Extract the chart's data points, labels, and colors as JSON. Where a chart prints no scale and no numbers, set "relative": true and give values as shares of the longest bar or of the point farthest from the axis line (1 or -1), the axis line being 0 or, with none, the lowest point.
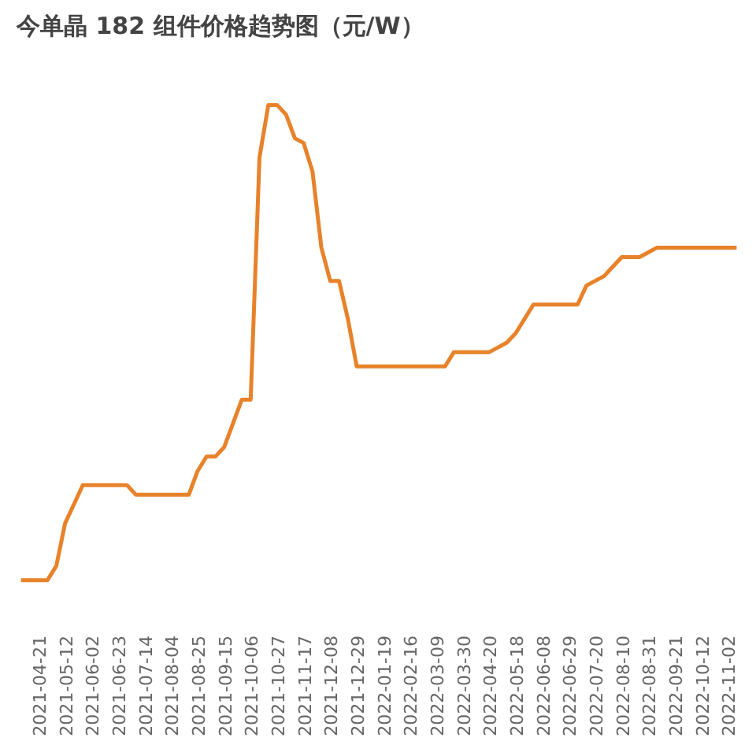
{
  "chart_data": {
    "type": "line",
    "title": "今单晶 182 组件价格趋势图（元/W）",
    "relative": true,
    "grid": false,
    "tick_labels": "x",
    "line_style": "solid",
    "marker": "none",
    "categories": [
      null,
      null,
      "2021-04-21",
      null,
      null,
      "2021-05-12",
      null,
      null,
      "2021-06-02",
      null,
      null,
      "2021-06-23",
      null,
      null,
      "2021-07-14",
      null,
      null,
      "2021-08-04",
      null,
      null,
      "2021-08-25",
      null,
      null,
      "2021-09-15",
      null,
      null,
      "2021-10-06",
      null,
      null,
      "2021-10-27",
      null,
      null,
      "2021-11-17",
      null,
      null,
      "2021-12-08",
      null,
      null,
      "2021-12-29",
      null,
      null,
      "2022-01-19",
      null,
      null,
      "2022-02-16",
      null,
      null,
      "2022-03-09",
      null,
      null,
      "2022-03-30",
      null,
      null,
      "2022-04-20",
      null,
      null,
      "2022-05-18",
      null,
      null,
      "2022-06-08",
      null,
      null,
      "2022-06-29",
      null,
      null,
      "2022-07-20",
      null,
      null,
      "2022-08-10",
      null,
      null,
      "2022-08-31",
      null,
      null,
      "2022-09-21",
      null,
      null,
      "2022-10-12",
      null,
      null,
      "2022-11-02",
      null
    ],
    "series": [
      {
        "color": "#e8822a",
        "values": [
          0,
          0,
          0,
          0,
          0.03,
          0.12,
          0.16,
          0.2,
          0.2,
          0.2,
          0.2,
          0.2,
          0.2,
          0.18,
          0.18,
          0.18,
          0.18,
          0.18,
          0.18,
          0.18,
          0.23,
          0.26,
          0.26,
          0.28,
          0.33,
          0.38,
          0.38,
          0.89,
          1,
          1,
          0.98,
          0.93,
          0.92,
          0.86,
          0.7,
          0.63,
          0.63,
          0.55,
          0.45,
          0.45,
          0.45,
          0.45,
          0.45,
          0.45,
          0.45,
          0.45,
          0.45,
          0.45,
          0.45,
          0.48,
          0.48,
          0.48,
          0.48,
          0.48,
          0.49,
          0.5,
          0.52,
          0.55,
          0.58,
          0.58,
          0.58,
          0.58,
          0.58,
          0.58,
          0.62,
          0.63,
          0.64,
          0.66,
          0.68,
          0.68,
          0.68,
          0.69,
          0.7,
          0.7,
          0.7,
          0.7,
          0.7,
          0.7,
          0.7,
          0.7,
          0.7,
          0.7
        ]
      }
    ]
  }
}
